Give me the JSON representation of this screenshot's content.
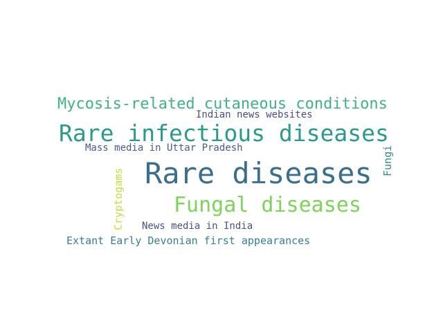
{
  "word_cloud": {
    "words": [
      {
        "text": "Rare diseases",
        "color": "#3b6e8c"
      },
      {
        "text": "Rare infectious diseases",
        "color": "#2a9a8a"
      },
      {
        "text": "Fungal diseases",
        "color": "#7ed35a"
      },
      {
        "text": "Mycosis-related cutaneous conditions",
        "color": "#3fb386"
      },
      {
        "text": "Indian news websites",
        "color": "#4a4a8c"
      },
      {
        "text": "Mass media in Uttar Pradesh",
        "color": "#4b5894"
      },
      {
        "text": "Fungi",
        "color": "#2f8f8a"
      },
      {
        "text": "Cryptogams",
        "color": "#c4de3a"
      },
      {
        "text": "News media in India",
        "color": "#4b4f90"
      },
      {
        "text": "Extant Early Devonian first appearances",
        "color": "#357f93"
      }
    ]
  }
}
